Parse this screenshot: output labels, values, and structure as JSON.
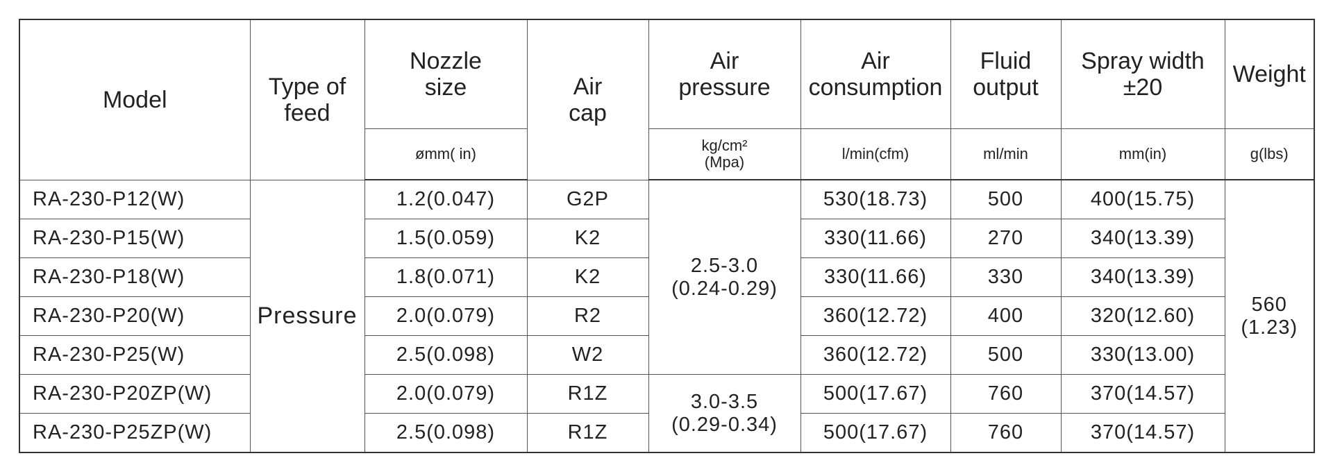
{
  "table": {
    "headers": [
      "Model",
      "Type of\nfeed",
      "Nozzle\nsize",
      "Air\ncap",
      "Air\npressure",
      "Air\nconsumption",
      "Fluid\noutput",
      "Spray width\n±20",
      "Weight"
    ],
    "units": [
      "ømm( in)",
      "kg/cm²\n(Mpa)",
      "l/min(cfm)",
      "ml/min",
      "mm(in)",
      "g(lbs)"
    ],
    "feed": "Pressure",
    "air_pressure": [
      "2.5-3.0\n(0.24-0.29)",
      "3.0-3.5\n(0.29-0.34)"
    ],
    "weight": "560\n(1.23)",
    "rows": [
      [
        "RA-230-P12(W)",
        "1.2(0.047)",
        "G2P",
        "530(18.73)",
        "500",
        "400(15.75)"
      ],
      [
        "RA-230-P15(W)",
        "1.5(0.059)",
        "K2",
        "330(11.66)",
        "270",
        "340(13.39)"
      ],
      [
        "RA-230-P18(W)",
        "1.8(0.071)",
        "K2",
        "330(11.66)",
        "330",
        "340(13.39)"
      ],
      [
        "RA-230-P20(W)",
        "2.0(0.079)",
        "R2",
        "360(12.72)",
        "400",
        "320(12.60)"
      ],
      [
        "RA-230-P25(W)",
        "2.5(0.098)",
        "W2",
        "360(12.72)",
        "500",
        "330(13.00)"
      ],
      [
        "RA-230-P20ZP(W)",
        "2.0(0.079)",
        "R1Z",
        "500(17.67)",
        "760",
        "370(14.57)"
      ],
      [
        "RA-230-P25ZP(W)",
        "2.5(0.098)",
        "R1Z",
        "500(17.67)",
        "760",
        "370(14.57)"
      ]
    ]
  }
}
